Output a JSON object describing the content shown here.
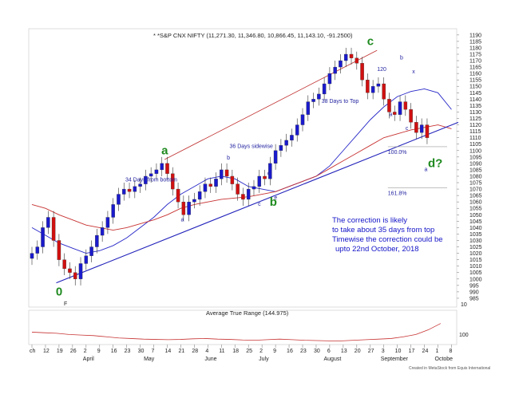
{
  "chart_data": {
    "type": "candlestick",
    "title": "* *S&P CNX NIFTY (11,271.30, 11,346.80, 10,866.45, 11,143.10, -91.2500)",
    "price_axis": {
      "ticks": [
        1190,
        1185,
        1180,
        1175,
        1170,
        1165,
        1160,
        1155,
        1150,
        1145,
        1140,
        1135,
        1130,
        1125,
        1120,
        1115,
        1110,
        1105,
        1100,
        1095,
        1090,
        1085,
        1080,
        1075,
        1070,
        1065,
        1060,
        1055,
        1050,
        1045,
        1040,
        1035,
        1030,
        1025,
        1020,
        1015,
        1010,
        1005,
        1000,
        995,
        990,
        985
      ],
      "range": [
        980,
        1193
      ]
    },
    "date_axis": {
      "day_ticks": [
        {
          "label": "ch",
          "week": 0
        },
        {
          "label": "12",
          "week": 1
        },
        {
          "label": "19",
          "week": 2
        },
        {
          "label": "26",
          "week": 3
        },
        {
          "label": "2",
          "week": 4
        },
        {
          "label": "9",
          "week": 5
        },
        {
          "label": "16",
          "week": 6
        },
        {
          "label": "23",
          "week": 7
        },
        {
          "label": "30",
          "week": 8
        },
        {
          "label": "7",
          "week": 9
        },
        {
          "label": "14",
          "week": 10
        },
        {
          "label": "21",
          "week": 11
        },
        {
          "label": "28",
          "week": 12
        },
        {
          "label": "4",
          "week": 13
        },
        {
          "label": "11",
          "week": 14
        },
        {
          "label": "18",
          "week": 15
        },
        {
          "label": "25",
          "week": 16
        },
        {
          "label": "2",
          "week": 17
        },
        {
          "label": "9",
          "week": 18
        },
        {
          "label": "16",
          "week": 19
        },
        {
          "label": "23",
          "week": 20
        },
        {
          "label": "30",
          "week": 21
        },
        {
          "label": "6",
          "week": 22
        },
        {
          "label": "13",
          "week": 23
        },
        {
          "label": "20",
          "week": 24
        },
        {
          "label": "27",
          "week": 25
        },
        {
          "label": "3",
          "week": 26
        },
        {
          "label": "10",
          "week": 27
        },
        {
          "label": "17",
          "week": 28
        },
        {
          "label": "24",
          "week": 29
        },
        {
          "label": "1",
          "week": 30
        },
        {
          "label": "8",
          "week": 31
        }
      ],
      "months": [
        {
          "label": "April",
          "week": 4
        },
        {
          "label": "May",
          "week": 8.5
        },
        {
          "label": "June",
          "week": 13
        },
        {
          "label": "July",
          "week": 17
        },
        {
          "label": "August",
          "week": 21.8
        },
        {
          "label": "September",
          "week": 26
        },
        {
          "label": "Octobe",
          "week": 30
        }
      ]
    },
    "series": [
      {
        "name": "price_close",
        "x": [
          0,
          0.4,
          0.8,
          1.2,
          1.6,
          2,
          2.4,
          2.8,
          3.2,
          3.6,
          4,
          4.4,
          4.8,
          5.2,
          5.6,
          6,
          6.4,
          6.8,
          7.2,
          7.6,
          8,
          8.4,
          8.8,
          9.2,
          9.6,
          10,
          10.4,
          10.8,
          11.2,
          11.6,
          12,
          12.4,
          12.8,
          13.2,
          13.6,
          14,
          14.4,
          14.8,
          15.2,
          15.6,
          16,
          16.4,
          16.8,
          17.2,
          17.6,
          18,
          18.4,
          18.8,
          19.2,
          19.6,
          20,
          20.4,
          20.8,
          21.2,
          21.6,
          22,
          22.4,
          22.8,
          23.2,
          23.6,
          24,
          24.4,
          24.8,
          25.2,
          25.6,
          26,
          26.4,
          26.8,
          27.2,
          27.6,
          28,
          28.4,
          28.8,
          29.2
        ],
        "values": [
          1020,
          1025,
          1040,
          1048,
          1030,
          1015,
          1008,
          1005,
          1000,
          1012,
          1018,
          1025,
          1034,
          1040,
          1048,
          1058,
          1066,
          1070,
          1068,
          1072,
          1074,
          1080,
          1082,
          1085,
          1090,
          1082,
          1070,
          1060,
          1050,
          1060,
          1062,
          1068,
          1074,
          1072,
          1078,
          1085,
          1080,
          1074,
          1066,
          1062,
          1070,
          1072,
          1080,
          1078,
          1090,
          1100,
          1104,
          1108,
          1112,
          1120,
          1128,
          1138,
          1140,
          1144,
          1152,
          1160,
          1165,
          1170,
          1175,
          1172,
          1168,
          1155,
          1145,
          1150,
          1152,
          1140,
          1130,
          1128,
          1138,
          1132,
          1122,
          1114,
          1120,
          1110
        ]
      }
    ],
    "overlays": [
      {
        "name": "moving_average_short",
        "values": [
          1040,
          1034,
          1028,
          1024,
          1020,
          1022,
          1026,
          1032,
          1040,
          1048,
          1058,
          1066,
          1072,
          1078,
          1080,
          1078,
          1072,
          1070,
          1068,
          1072,
          1076,
          1080,
          1088,
          1100,
          1112,
          1124,
          1134,
          1142,
          1146,
          1148,
          1145,
          1132
        ]
      },
      {
        "name": "moving_average_long",
        "values": [
          1058,
          1055,
          1050,
          1046,
          1042,
          1040,
          1038,
          1040,
          1043,
          1046,
          1050,
          1055,
          1058,
          1060,
          1062,
          1063,
          1064,
          1066,
          1068,
          1072,
          1076,
          1080,
          1086,
          1092,
          1098,
          1104,
          1110,
          1113,
          1116,
          1118,
          1120,
          1117
        ]
      }
    ],
    "trendlines": [
      {
        "name": "lower-channel-line",
        "from": {
          "week": 1.8,
          "price": 997
        },
        "to": {
          "week": 31.5,
          "price": 1122
        }
      },
      {
        "name": "upper-channel-line",
        "from": {
          "week": 9.8,
          "price": 1093
        },
        "to": {
          "week": 25.5,
          "price": 1178
        }
      }
    ],
    "fib_levels": [
      {
        "label": "100.0%",
        "price": 1103
      },
      {
        "label": "161.8%",
        "price": 1071
      }
    ],
    "wave_labels": [
      {
        "label": "0",
        "week": 2.0,
        "price": 987
      },
      {
        "label": "a",
        "week": 9.8,
        "price": 1097
      },
      {
        "label": "b",
        "week": 17.8,
        "price": 1057
      },
      {
        "label": "c",
        "week": 25.0,
        "price": 1182
      },
      {
        "label": "d?",
        "week": 29.5,
        "price": 1087
      }
    ],
    "small_labels": [
      {
        "label": "a",
        "week": 11.0,
        "price": 1045
      },
      {
        "label": "b",
        "week": 14.4,
        "price": 1093
      },
      {
        "label": "c",
        "week": 16.7,
        "price": 1057
      },
      {
        "label": "d",
        "week": 17.4,
        "price": 1081
      },
      {
        "label": "e",
        "week": 17.9,
        "price": 1062
      },
      {
        "label": "120",
        "week": 25.5,
        "price": 1162
      },
      {
        "label": "b",
        "week": 27.2,
        "price": 1171
      },
      {
        "label": "x",
        "week": 28.1,
        "price": 1160
      },
      {
        "label": "a",
        "week": 26.4,
        "price": 1127
      },
      {
        "label": "c",
        "week": 27.6,
        "price": 1116
      },
      {
        "label": "a",
        "week": 29.0,
        "price": 1084
      }
    ],
    "annotations": [
      {
        "text": "34 Days from bottom",
        "week": 6.9,
        "price": 1076
      },
      {
        "text": "36 Days sidewise",
        "week": 14.6,
        "price": 1102
      },
      {
        "text": "38 Days to Top",
        "week": 21.4,
        "price": 1137
      }
    ],
    "note_lines": [
      "The correction is likely",
      "to take about 35 days from top",
      "Timewise the correction could be",
      "upto 22nd October, 2018"
    ],
    "bottom_marker": "F",
    "atr_panel": {
      "title": "Average True Range (144.975)",
      "ytick": "100",
      "ylim": [
        80,
        190
      ],
      "values": [
        120,
        118,
        116,
        112,
        110,
        108,
        104,
        100,
        98,
        96,
        95,
        94,
        95,
        97,
        98,
        96,
        95,
        93,
        92,
        94,
        96,
        94,
        92,
        91,
        90,
        90,
        92,
        94,
        96,
        98,
        104,
        112,
        128,
        150
      ]
    },
    "price_readout": "10",
    "credit": "Created in MetaStock from Equis International"
  },
  "colors": {
    "up": "#1a1acc",
    "down": "#d01010",
    "ma_short": "#2727c8",
    "ma_long": "#c83232",
    "trend": "#2222bb",
    "channel": "#c03030",
    "wave": "#1f8a1f",
    "atr": "#c83232",
    "note": "#1414c8"
  }
}
